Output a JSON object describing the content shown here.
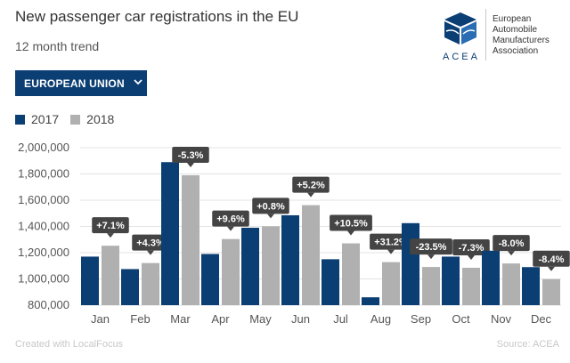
{
  "header": {
    "title": "New passenger car registrations in the EU",
    "subtitle": "12 month trend"
  },
  "filter": {
    "selected": "EUROPEAN UNION",
    "chevron_icon": "chevron-down-icon"
  },
  "logo": {
    "acronym": "ACEA",
    "org_line1": "European",
    "org_line2": "Automobile",
    "org_line3": "Manufacturers",
    "org_line4": "Association"
  },
  "footer": {
    "credit": "Created with LocalFocus",
    "source": "Source: ACEA"
  },
  "colors": {
    "series_2017": "#0b3e73",
    "series_2018": "#b0b0b0",
    "label_bg": "#444444"
  },
  "chart_data": {
    "type": "bar",
    "title": "New passenger car registrations in the EU",
    "categories": [
      "Jan",
      "Feb",
      "Mar",
      "Apr",
      "May",
      "Jun",
      "Jul",
      "Aug",
      "Sep",
      "Oct",
      "Nov",
      "Dec"
    ],
    "series": [
      {
        "name": "2017",
        "values": [
          1170000,
          1075000,
          1890000,
          1190000,
          1390000,
          1485000,
          1150000,
          860000,
          1425000,
          1170000,
          1215000,
          1090000
        ]
      },
      {
        "name": "2018",
        "values": [
          1253000,
          1121000,
          1790000,
          1304000,
          1401000,
          1562000,
          1271000,
          1128000,
          1091000,
          1085000,
          1118000,
          998000
        ]
      }
    ],
    "labels": [
      "+7.1%",
      "+4.3%",
      "-5.3%",
      "+9.6%",
      "+0.8%",
      "+5.2%",
      "+10.5%",
      "+31.2%",
      "-23.5%",
      "-7.3%",
      "-8.0%",
      "-8.4%"
    ],
    "yticks": [
      "2,000,000",
      "1,800,000",
      "1,600,000",
      "1,400,000",
      "1,200,000",
      "1,000,000",
      "800,000"
    ],
    "ylim": [
      800000,
      2000000
    ],
    "xlabel": "",
    "ylabel": "",
    "legend_position": "top-left",
    "grid": true
  }
}
